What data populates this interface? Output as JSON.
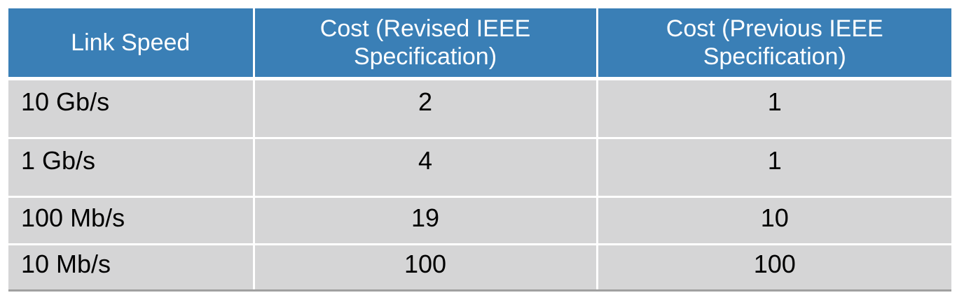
{
  "table": {
    "headers": [
      "Link Speed",
      "Cost (Revised IEEE Specification)",
      "Cost (Previous IEEE Specification)"
    ],
    "rows": [
      [
        "10 Gb/s",
        "2",
        "1"
      ],
      [
        "1 Gb/s",
        "4",
        "1"
      ],
      [
        "100 Mb/s",
        "19",
        "10"
      ],
      [
        "10 Mb/s",
        "100",
        "100"
      ]
    ]
  },
  "colors": {
    "header_bg": "#3a7fb6",
    "cell_bg": "#d5d5d6",
    "header_text": "#ffffff",
    "cell_text": "#000000"
  }
}
